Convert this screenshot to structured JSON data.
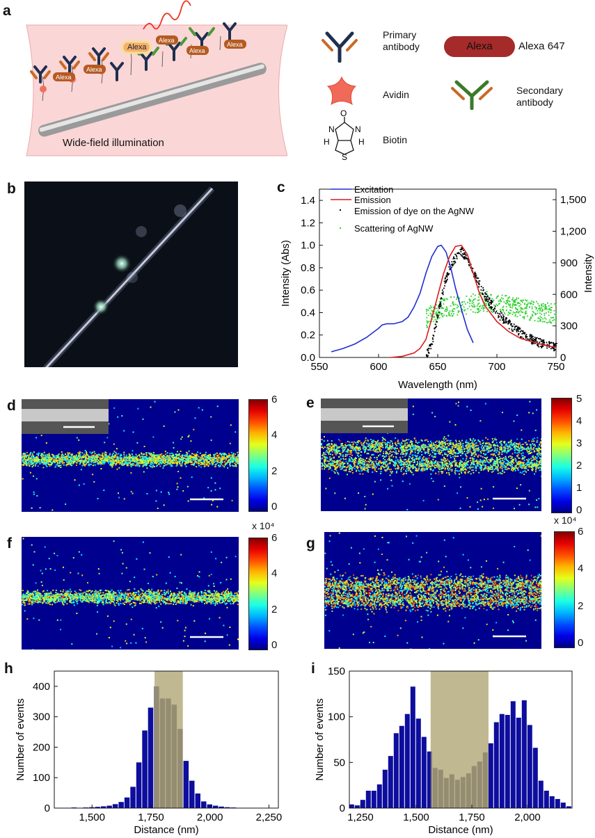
{
  "panel_labels": [
    "a",
    "b",
    "c",
    "d",
    "e",
    "f",
    "g",
    "h",
    "i"
  ],
  "schematic": {
    "illumination_label": "Wide-field illumination",
    "dye_label": "Alexa",
    "legend": [
      {
        "key": "primary",
        "label": "Primary antibody"
      },
      {
        "key": "alexa",
        "label": "Alexa 647",
        "badge": "Alexa"
      },
      {
        "key": "avidin",
        "label": "Avidin"
      },
      {
        "key": "secondary",
        "label": "Secondary antibody"
      },
      {
        "key": "biotin",
        "label": "Biotin",
        "atoms": [
          "O",
          "N",
          "N",
          "H",
          "H",
          "S"
        ]
      }
    ]
  },
  "colorbars": {
    "d": {
      "ticks": [
        "6",
        "4",
        "2",
        "0"
      ],
      "multiplier": ""
    },
    "e": {
      "ticks": [
        "5",
        "4",
        "3",
        "2",
        "1",
        "0"
      ],
      "multiplier": ""
    },
    "f": {
      "ticks": [
        "6",
        "4",
        "2",
        "0"
      ],
      "multiplier": "x 10⁴"
    },
    "g": {
      "ticks": [
        "6",
        "4",
        "2",
        "0"
      ],
      "multiplier": "x 10⁴"
    }
  },
  "chart_data": [
    {
      "panel": "c",
      "type": "line",
      "xlabel": "Wavelength (nm)",
      "ylabel": "Intensity (Abs)",
      "y2label": "Intensity",
      "xlim": [
        550,
        750
      ],
      "ylim": [
        0,
        1.5
      ],
      "y2lim": [
        0,
        1600
      ],
      "xticks": [
        "550",
        "600",
        "650",
        "700",
        "750"
      ],
      "yticks": [
        "0.0",
        "0.2",
        "0.4",
        "0.6",
        "0.8",
        "1.0",
        "1.2",
        "1.4"
      ],
      "y2ticks": [
        "0",
        "300",
        "600",
        "900",
        "1,200",
        "1,500"
      ],
      "legend": [
        "Excitation",
        "Emission",
        "Emission of dye on the AgNW",
        "Scattering of AgNW"
      ],
      "series": [
        {
          "name": "Excitation",
          "color": "#1f2fd0",
          "x": [
            560,
            570,
            580,
            590,
            595,
            600,
            603,
            607,
            613,
            620,
            625,
            630,
            635,
            640,
            645,
            650,
            653,
            657,
            661,
            665,
            670,
            675,
            680
          ],
          "y": [
            0.05,
            0.08,
            0.12,
            0.18,
            0.22,
            0.26,
            0.29,
            0.3,
            0.3,
            0.32,
            0.36,
            0.45,
            0.57,
            0.75,
            0.9,
            0.99,
            1.0,
            0.94,
            0.8,
            0.62,
            0.43,
            0.25,
            0.13
          ]
        },
        {
          "name": "Emission",
          "color": "#d81c1c",
          "x": [
            610,
            620,
            630,
            635,
            640,
            645,
            650,
            655,
            660,
            665,
            670,
            675,
            680,
            685,
            690,
            700,
            710,
            720,
            730,
            740,
            750
          ],
          "y": [
            0.0,
            0.01,
            0.04,
            0.08,
            0.16,
            0.35,
            0.55,
            0.75,
            0.9,
            0.99,
            1.0,
            0.92,
            0.75,
            0.58,
            0.46,
            0.32,
            0.23,
            0.17,
            0.14,
            0.11,
            0.09
          ]
        },
        {
          "name": "Emission of dye on the AgNW",
          "color": "#000000",
          "x": [
            640,
            645,
            650,
            655,
            660,
            665,
            670,
            675,
            680,
            690,
            700,
            710,
            720,
            730,
            740,
            750
          ],
          "y": [
            0.02,
            0.15,
            0.4,
            0.65,
            0.82,
            0.9,
            0.95,
            0.88,
            0.75,
            0.55,
            0.4,
            0.3,
            0.22,
            0.16,
            0.12,
            0.09
          ]
        },
        {
          "name": "Scattering of AgNW",
          "color": "#2ed12e",
          "x": [
            640,
            650,
            660,
            670,
            680,
            690,
            700,
            710,
            720,
            730,
            740,
            750
          ],
          "y2": [
            380,
            470,
            490,
            500,
            520,
            540,
            520,
            500,
            470,
            450,
            430,
            420
          ]
        }
      ]
    },
    {
      "panel": "h",
      "type": "bar",
      "xlabel": "Distance (nm)",
      "ylabel": "Number of events",
      "xlim": [
        1340,
        2290
      ],
      "ylim": [
        0,
        450
      ],
      "xticks": [
        "1,500",
        "1,750",
        "2,000",
        "2,250"
      ],
      "yticks": [
        "0",
        "100",
        "200",
        "300",
        "400"
      ],
      "bin_width": 25,
      "x": [
        1375,
        1400,
        1425,
        1450,
        1475,
        1500,
        1525,
        1550,
        1575,
        1600,
        1625,
        1650,
        1675,
        1700,
        1725,
        1750,
        1775,
        1800,
        1825,
        1850,
        1875,
        1900,
        1925,
        1950,
        1975,
        2000,
        2025,
        2050,
        2075,
        2100,
        2125,
        2150,
        2175,
        2200,
        2225,
        2250
      ],
      "values": [
        1,
        1,
        2,
        1,
        2,
        3,
        4,
        6,
        8,
        13,
        20,
        35,
        70,
        150,
        255,
        330,
        400,
        360,
        360,
        340,
        260,
        155,
        90,
        48,
        22,
        12,
        8,
        5,
        3,
        2,
        1,
        1,
        0,
        1,
        0,
        1
      ],
      "highlight": [
        1765,
        1885
      ]
    },
    {
      "panel": "i",
      "type": "bar",
      "xlabel": "Distance (nm)",
      "ylabel": "Number of events",
      "xlim": [
        1200,
        2200
      ],
      "ylim": [
        0,
        150
      ],
      "xticks": [
        "1,250",
        "1,500",
        "1,750",
        "2,000"
      ],
      "yticks": [
        "0",
        "50",
        "100",
        "150"
      ],
      "bin_width": 25,
      "x": [
        1212,
        1237,
        1262,
        1287,
        1312,
        1337,
        1362,
        1387,
        1412,
        1437,
        1462,
        1487,
        1512,
        1537,
        1562,
        1587,
        1612,
        1637,
        1662,
        1687,
        1712,
        1737,
        1762,
        1787,
        1812,
        1837,
        1862,
        1887,
        1912,
        1937,
        1962,
        1987,
        2012,
        2037,
        2062,
        2087,
        2112,
        2137,
        2162,
        2187
      ],
      "values": [
        4,
        3,
        9,
        19,
        19,
        26,
        42,
        57,
        82,
        90,
        103,
        133,
        98,
        78,
        62,
        44,
        42,
        33,
        37,
        31,
        34,
        38,
        46,
        51,
        61,
        71,
        94,
        103,
        102,
        117,
        99,
        118,
        91,
        66,
        30,
        19,
        13,
        10,
        6,
        2
      ],
      "highlight": [
        1565,
        1825
      ]
    }
  ]
}
